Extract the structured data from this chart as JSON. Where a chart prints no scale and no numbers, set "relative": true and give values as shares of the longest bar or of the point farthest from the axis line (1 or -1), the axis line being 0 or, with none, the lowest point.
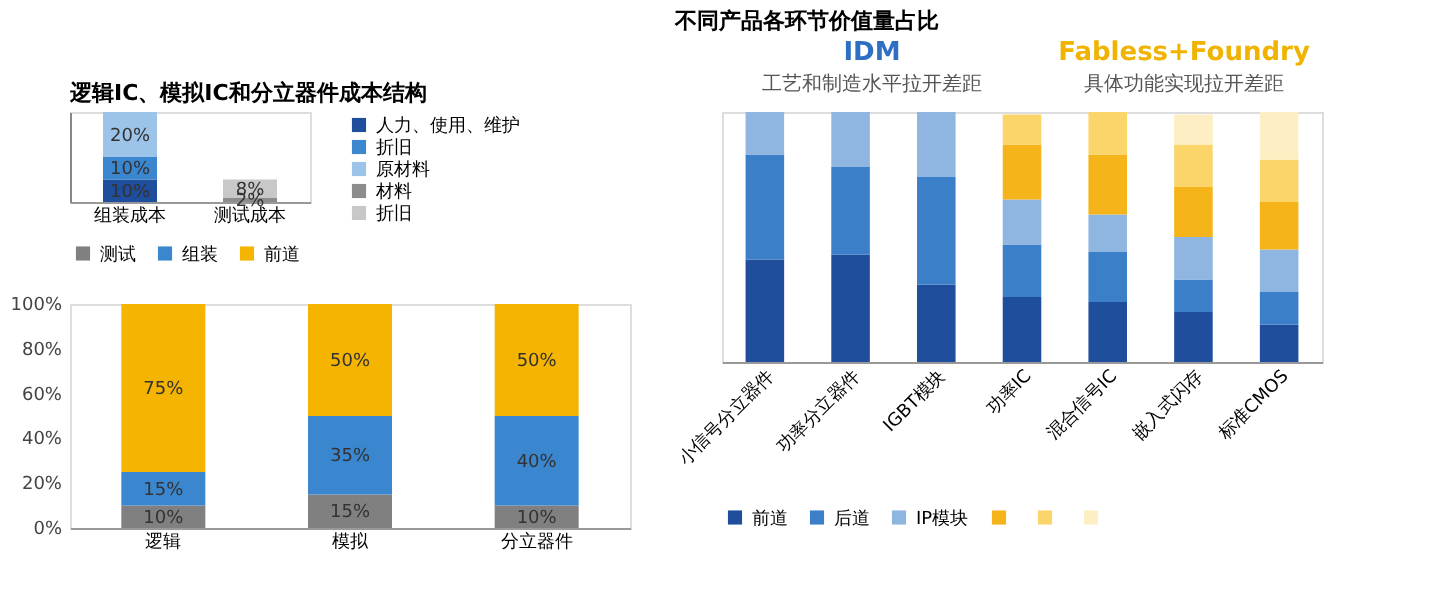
{
  "chart_data": [
    {
      "type": "bar",
      "title": "逻辑IC、模拟IC和分立器件成本结构",
      "categories": [
        "组装成本",
        "测试成本"
      ],
      "stacked": true,
      "legend": "right",
      "grid": false,
      "tick_labels": "x",
      "series": [
        {
          "name": "人力、使用、维护",
          "color": "#1f4e9c",
          "values": [
            10,
            null
          ],
          "value_labels": [
            "10%",
            null
          ]
        },
        {
          "name": "折旧",
          "color": "#3b87cf",
          "values": [
            10,
            null
          ],
          "value_labels": [
            "10%",
            null
          ]
        },
        {
          "name": "原材料",
          "color": "#9cc3e8",
          "values": [
            20,
            null
          ],
          "value_labels": [
            "20%",
            null
          ]
        },
        {
          "name": "材料",
          "color": "#8c8c8c",
          "values": [
            null,
            2
          ],
          "value_labels": [
            null,
            "2%"
          ]
        },
        {
          "name": "折旧",
          "color": "#c8c8c8",
          "values": [
            null,
            8
          ],
          "value_labels": [
            null,
            "8%"
          ]
        }
      ]
    },
    {
      "type": "bar",
      "categories": [
        "逻辑",
        "模拟",
        "分立器件"
      ],
      "stacked": true,
      "legend": "top",
      "grid": false,
      "ylim": [
        0,
        100
      ],
      "yticks": [
        {
          "value": 0,
          "label": "0%"
        },
        {
          "value": 20,
          "label": "20%"
        },
        {
          "value": 40,
          "label": "40%"
        },
        {
          "value": 60,
          "label": "60%"
        },
        {
          "value": 80,
          "label": "80%"
        },
        {
          "value": 100,
          "label": "100%"
        }
      ],
      "series": [
        {
          "name": "测试",
          "color": "#808080",
          "values": [
            10,
            15,
            10
          ],
          "value_labels": [
            "10%",
            "15%",
            "10%"
          ]
        },
        {
          "name": "组装",
          "color": "#3b87cf",
          "values": [
            15,
            35,
            40
          ],
          "value_labels": [
            "15%",
            "35%",
            "40%"
          ]
        },
        {
          "name": "前道",
          "color": "#f5b400",
          "values": [
            75,
            50,
            50
          ],
          "value_labels": [
            "75%",
            "50%",
            "50%"
          ]
        }
      ]
    },
    {
      "type": "bar",
      "title": "不同产品各环节价值量占比",
      "relative": true,
      "stacked": true,
      "legend": "bottom",
      "grid": false,
      "tick_labels": "x",
      "categories": [
        "小信号分立器件",
        "功率分立器件",
        "IGBT模块",
        "功率IC",
        "混合信号IC",
        "嵌入式闪存",
        "标准CMOS"
      ],
      "annotations": [
        "IDM",
        "工艺和制造水平拉开差距",
        "Fabless+Foundry",
        "具体功能实现拉开差距"
      ],
      "series": [
        {
          "name": "前道",
          "color": "#1f4e9c",
          "values": [
            0.41,
            0.43,
            0.31,
            0.26,
            0.24,
            0.2,
            0.15
          ]
        },
        {
          "name": "后道",
          "color": "#3a7fc8",
          "values": [
            0.42,
            0.35,
            0.43,
            0.21,
            0.2,
            0.13,
            0.13
          ]
        },
        {
          "name": "IP模块",
          "color": "#8fb6e0",
          "values": [
            0.17,
            0.22,
            0.26,
            0.18,
            0.15,
            0.17,
            0.17
          ]
        },
        {
          "color": "#f5b41a",
          "values": [
            0,
            0,
            0,
            0.22,
            0.24,
            0.2,
            0.19
          ]
        },
        {
          "color": "#fbd56a",
          "values": [
            0,
            0,
            0,
            0.12,
            0.17,
            0.17,
            0.17
          ]
        },
        {
          "color": "#fdeec4",
          "values": [
            0,
            0,
            0,
            0,
            0,
            0.12,
            0.19
          ]
        }
      ]
    }
  ]
}
